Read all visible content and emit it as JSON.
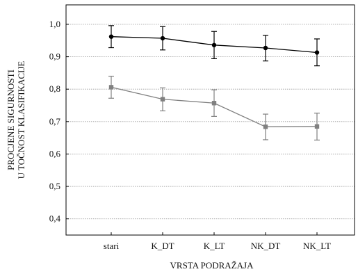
{
  "chart_data": {
    "type": "line",
    "categories": [
      "stari",
      "K_DT",
      "K_LT",
      "NK_DT",
      "NK_LT"
    ],
    "series": [
      {
        "color": "#000000",
        "marker": "circle",
        "values": [
          0.962,
          0.957,
          0.936,
          0.927,
          0.913
        ],
        "error_low": [
          0.928,
          0.921,
          0.894,
          0.887,
          0.872
        ],
        "error_high": [
          0.996,
          0.993,
          0.978,
          0.966,
          0.955
        ]
      },
      {
        "color": "#808080",
        "marker": "square",
        "values": [
          0.806,
          0.769,
          0.757,
          0.684,
          0.685
        ],
        "error_low": [
          0.772,
          0.733,
          0.716,
          0.644,
          0.643
        ],
        "error_high": [
          0.84,
          0.804,
          0.798,
          0.723,
          0.726
        ]
      }
    ],
    "xlabel": "VRSTA PODRAŽAJA",
    "ylabel_line1": "PROCJENE SIGURNOSTI",
    "ylabel_line2": "U TOČNOST KLASIFIKACIJE",
    "ylim": [
      0.35,
      1.06
    ],
    "yticks": [
      0.4,
      0.5,
      0.6,
      0.7,
      0.8,
      0.9,
      1.0
    ],
    "ytick_labels": [
      "0,4",
      "0,5",
      "0,6",
      "0,7",
      "0,8",
      "0,9",
      "1,0"
    ],
    "grid": true,
    "grid_style": "dotted horizontal"
  }
}
